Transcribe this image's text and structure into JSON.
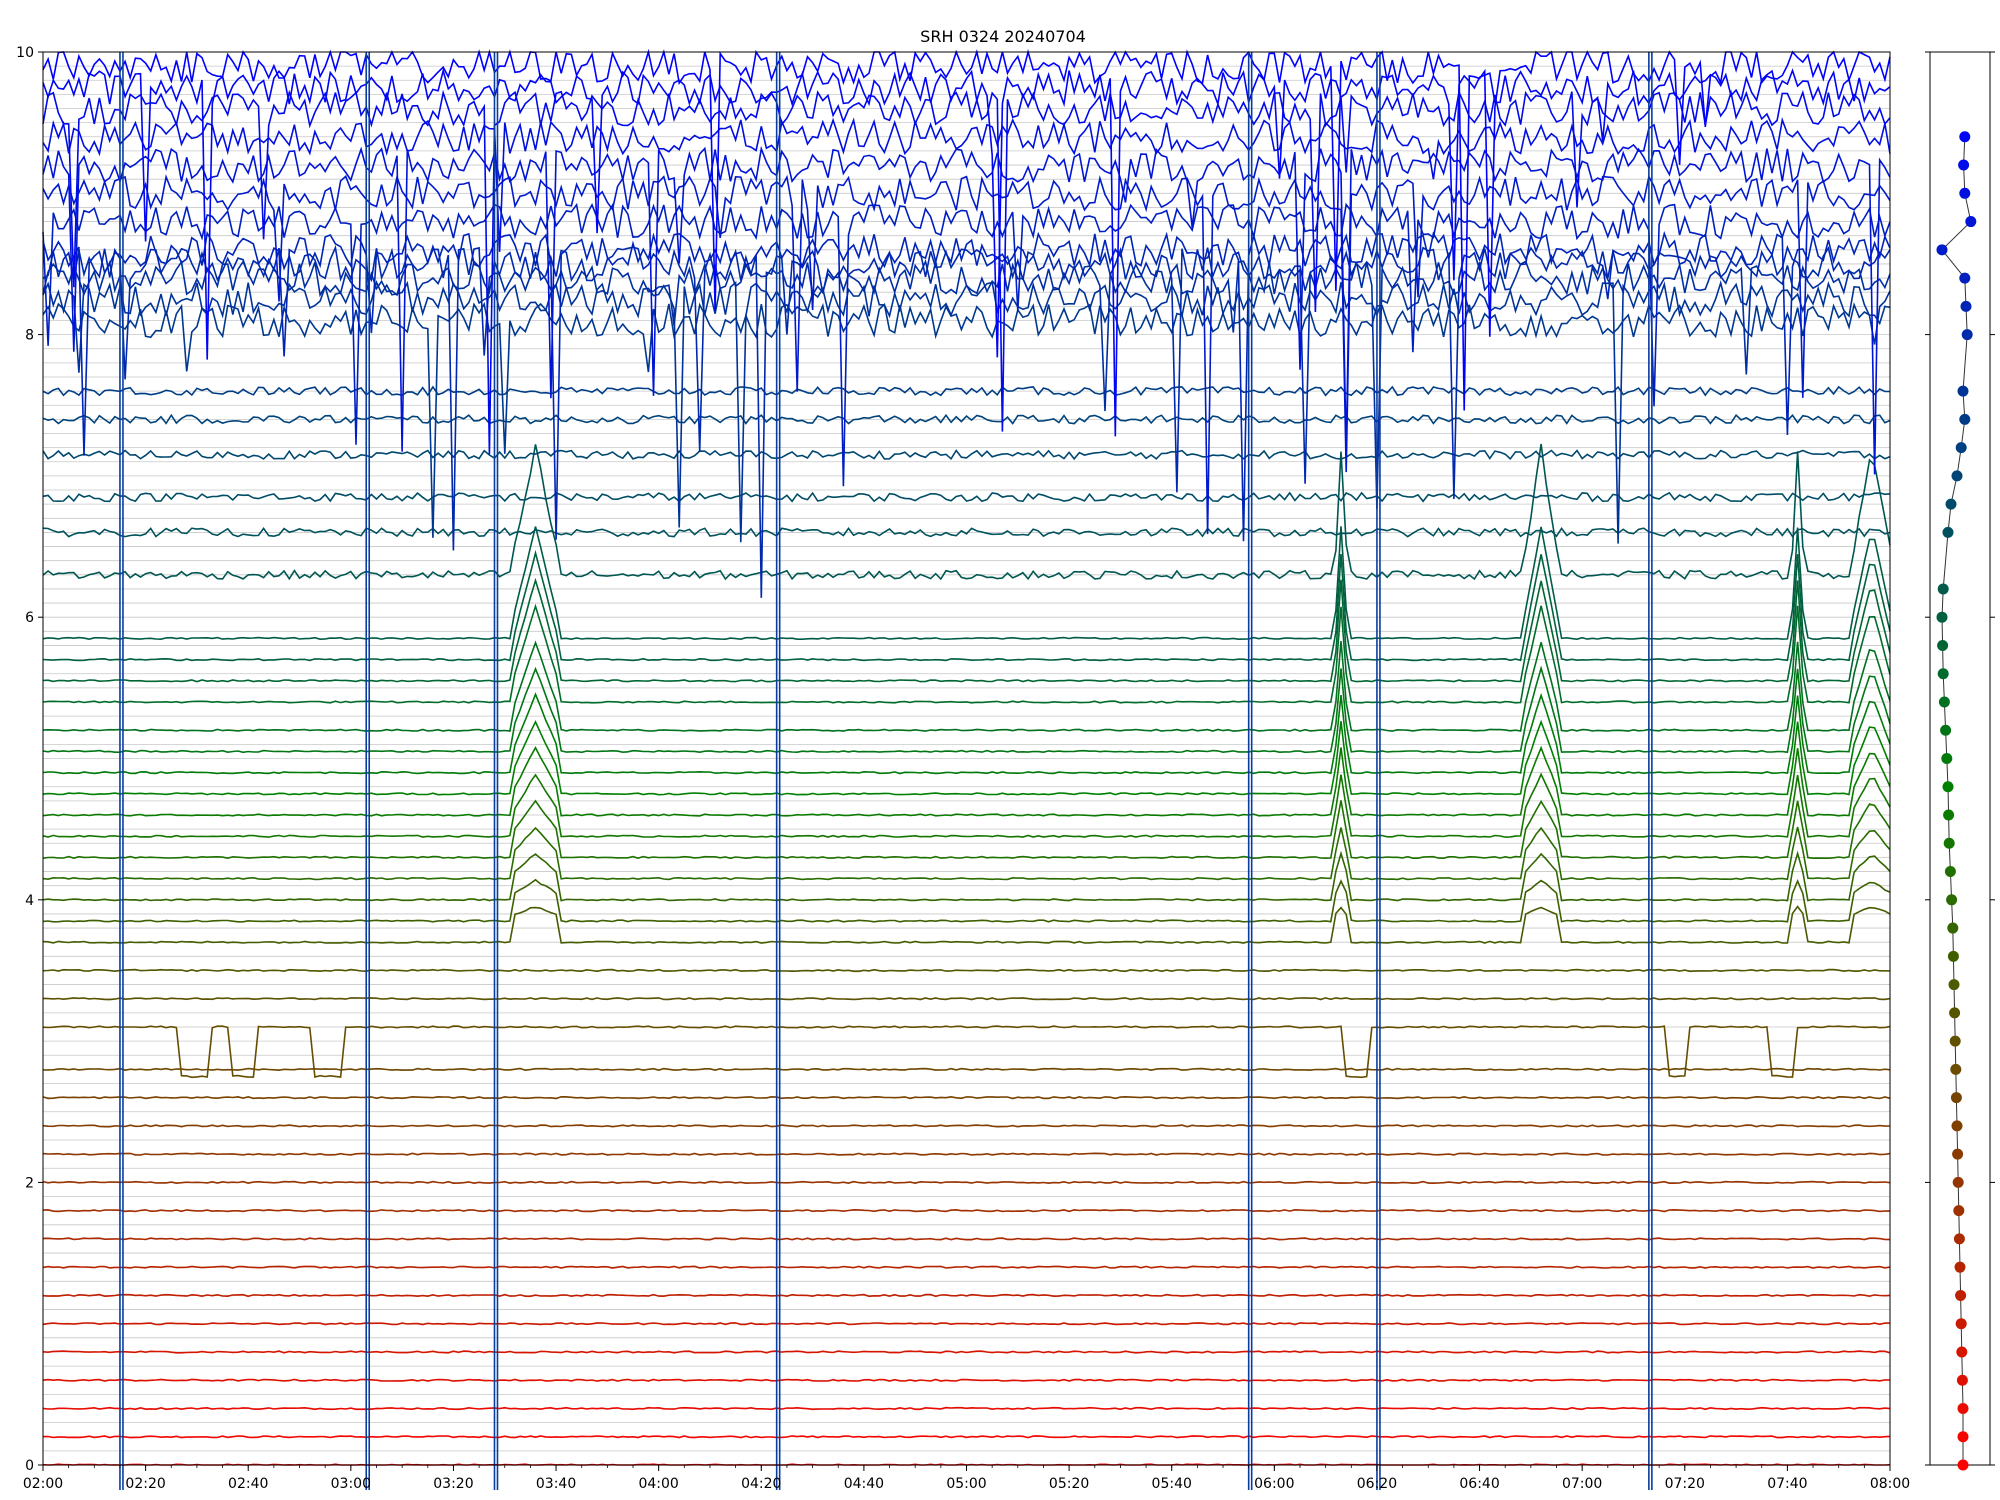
{
  "chart_data": {
    "type": "line",
    "title": "SRH 0324 20240704",
    "xlabel": "",
    "ylabel": "",
    "xlim": [
      "02:00",
      "08:00"
    ],
    "ylim": [
      0,
      10
    ],
    "x_ticks": [
      "02:00",
      "02:20",
      "02:40",
      "03:00",
      "03:20",
      "03:40",
      "04:00",
      "04:20",
      "04:40",
      "05:00",
      "05:20",
      "05:40",
      "06:00",
      "06:20",
      "06:40",
      "07:00",
      "07:20",
      "07:40",
      "08:00"
    ],
    "y_ticks": [
      "0",
      "2",
      "4",
      "6",
      "8",
      "10"
    ],
    "grid": "horizontal",
    "legend": "none",
    "series_count": 51,
    "series_spacing": 0.2,
    "color_start": "#ff0000",
    "color_mid": "#008000",
    "color_end": "#0000ff",
    "series_baselines": [
      0.0,
      0.2,
      0.4,
      0.6,
      0.8,
      1.0,
      1.2,
      1.4,
      1.6,
      1.8,
      2.0,
      2.2,
      2.4,
      2.6,
      2.8,
      3.1,
      3.3,
      3.5,
      3.7,
      3.85,
      4.0,
      4.15,
      4.3,
      4.45,
      4.6,
      4.75,
      4.9,
      5.05,
      5.2,
      5.4,
      5.55,
      5.7,
      5.85,
      6.3,
      6.6,
      6.85,
      7.15,
      7.4,
      7.6,
      8.1,
      8.25,
      8.4,
      8.5,
      8.6,
      8.8,
      9.0,
      9.2,
      9.4,
      9.6,
      9.75,
      9.9
    ],
    "vertical_spikes_times": [
      "02:15",
      "03:03",
      "03:28",
      "04:23",
      "05:55",
      "06:20",
      "07:13"
    ],
    "step_events": [
      {
        "series_level": 3.1,
        "dips": [
          [
            "02:27",
            "02:32"
          ],
          [
            "02:37",
            "02:41"
          ],
          [
            "02:53",
            "02:58"
          ],
          [
            "06:14",
            "06:18"
          ],
          [
            "07:17",
            "07:20"
          ],
          [
            "07:37",
            "07:41"
          ]
        ],
        "depth": 0.35
      },
      {
        "series_level": 4.0,
        "bumps": [
          [
            "03:32",
            "03:40"
          ],
          [
            "06:12",
            "06:14"
          ],
          [
            "06:49",
            "06:55"
          ],
          [
            "07:41",
            "07:43"
          ],
          [
            "07:53",
            "08:00"
          ]
        ],
        "height": 2.5
      }
    ],
    "side_panel": {
      "type": "scatter",
      "points_y": [
        0.0,
        0.2,
        0.4,
        0.6,
        0.8,
        1.0,
        1.2,
        1.4,
        1.6,
        1.8,
        2.0,
        2.2,
        2.4,
        2.6,
        2.8,
        3.0,
        3.2,
        3.4,
        3.6,
        3.8,
        4.0,
        4.2,
        4.4,
        4.6,
        4.8,
        5.0,
        5.2,
        5.4,
        5.6,
        5.8,
        6.0,
        6.2,
        6.6,
        6.8,
        7.0,
        7.2,
        7.4,
        7.6,
        8.0,
        8.2,
        8.4,
        8.6,
        8.8,
        9.0,
        9.2,
        9.4
      ],
      "points_x": [
        0.55,
        0.55,
        0.55,
        0.54,
        0.53,
        0.52,
        0.51,
        0.5,
        0.49,
        0.48,
        0.47,
        0.46,
        0.45,
        0.44,
        0.43,
        0.42,
        0.41,
        0.4,
        0.39,
        0.38,
        0.36,
        0.34,
        0.32,
        0.31,
        0.3,
        0.28,
        0.26,
        0.24,
        0.22,
        0.21,
        0.2,
        0.22,
        0.3,
        0.35,
        0.45,
        0.52,
        0.58,
        0.55,
        0.62,
        0.6,
        0.58,
        0.2,
        0.68,
        0.58,
        0.56,
        0.58
      ]
    }
  }
}
